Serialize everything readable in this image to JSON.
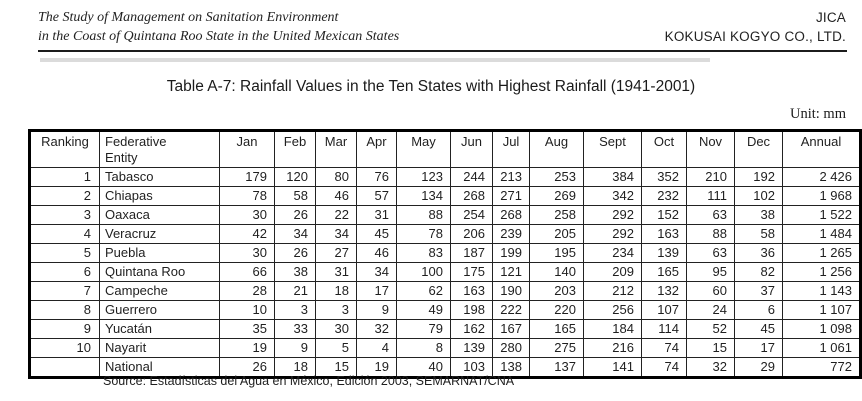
{
  "page_header": {
    "left_line1": "The Study of Management on Sanitation Environment",
    "left_line2": "in the Coast of Quintana Roo State in the United Mexican States",
    "right_line1": "JICA",
    "right_line2": "KOKUSAI KOGYO CO., LTD."
  },
  "table_title": "Table A-7: Rainfall Values in the Ten States with Highest Rainfall (1941-2001)",
  "unit_label": "Unit: mm",
  "source": "Source: Estadísticas del Agua en México, Edición 2003, SEMARNAT/CNA",
  "table": {
    "columns": [
      "Ranking",
      "Federative\nEntity",
      "Jan",
      "Feb",
      "Mar",
      "Apr",
      "May",
      "Jun",
      "Jul",
      "Aug",
      "Sept",
      "Oct",
      "Nov",
      "Dec",
      "Annual"
    ],
    "rows": [
      [
        "1",
        "Tabasco",
        "179",
        "120",
        "80",
        "76",
        "123",
        "244",
        "213",
        "253",
        "384",
        "352",
        "210",
        "192",
        "2 426"
      ],
      [
        "2",
        "Chiapas",
        "78",
        "58",
        "46",
        "57",
        "134",
        "268",
        "271",
        "269",
        "342",
        "232",
        "111",
        "102",
        "1 968"
      ],
      [
        "3",
        "Oaxaca",
        "30",
        "26",
        "22",
        "31",
        "88",
        "254",
        "268",
        "258",
        "292",
        "152",
        "63",
        "38",
        "1 522"
      ],
      [
        "4",
        "Veracruz",
        "42",
        "34",
        "34",
        "45",
        "78",
        "206",
        "239",
        "205",
        "292",
        "163",
        "88",
        "58",
        "1 484"
      ],
      [
        "5",
        "Puebla",
        "30",
        "26",
        "27",
        "46",
        "83",
        "187",
        "199",
        "195",
        "234",
        "139",
        "63",
        "36",
        "1 265"
      ],
      [
        "6",
        "Quintana Roo",
        "66",
        "38",
        "31",
        "34",
        "100",
        "175",
        "121",
        "140",
        "209",
        "165",
        "95",
        "82",
        "1 256"
      ],
      [
        "7",
        "Campeche",
        "28",
        "21",
        "18",
        "17",
        "62",
        "163",
        "190",
        "203",
        "212",
        "132",
        "60",
        "37",
        "1 143"
      ],
      [
        "8",
        "Guerrero",
        "10",
        "3",
        "3",
        "9",
        "49",
        "198",
        "222",
        "220",
        "256",
        "107",
        "24",
        "6",
        "1 107"
      ],
      [
        "9",
        "Yucatán",
        "35",
        "33",
        "30",
        "32",
        "79",
        "162",
        "167",
        "165",
        "184",
        "114",
        "52",
        "45",
        "1 098"
      ],
      [
        "10",
        "Nayarit",
        "19",
        "9",
        "5",
        "4",
        "8",
        "139",
        "280",
        "275",
        "216",
        "74",
        "15",
        "17",
        "1 061"
      ],
      [
        "",
        "National",
        "26",
        "18",
        "15",
        "19",
        "40",
        "103",
        "138",
        "137",
        "141",
        "74",
        "32",
        "29",
        "772"
      ]
    ]
  }
}
